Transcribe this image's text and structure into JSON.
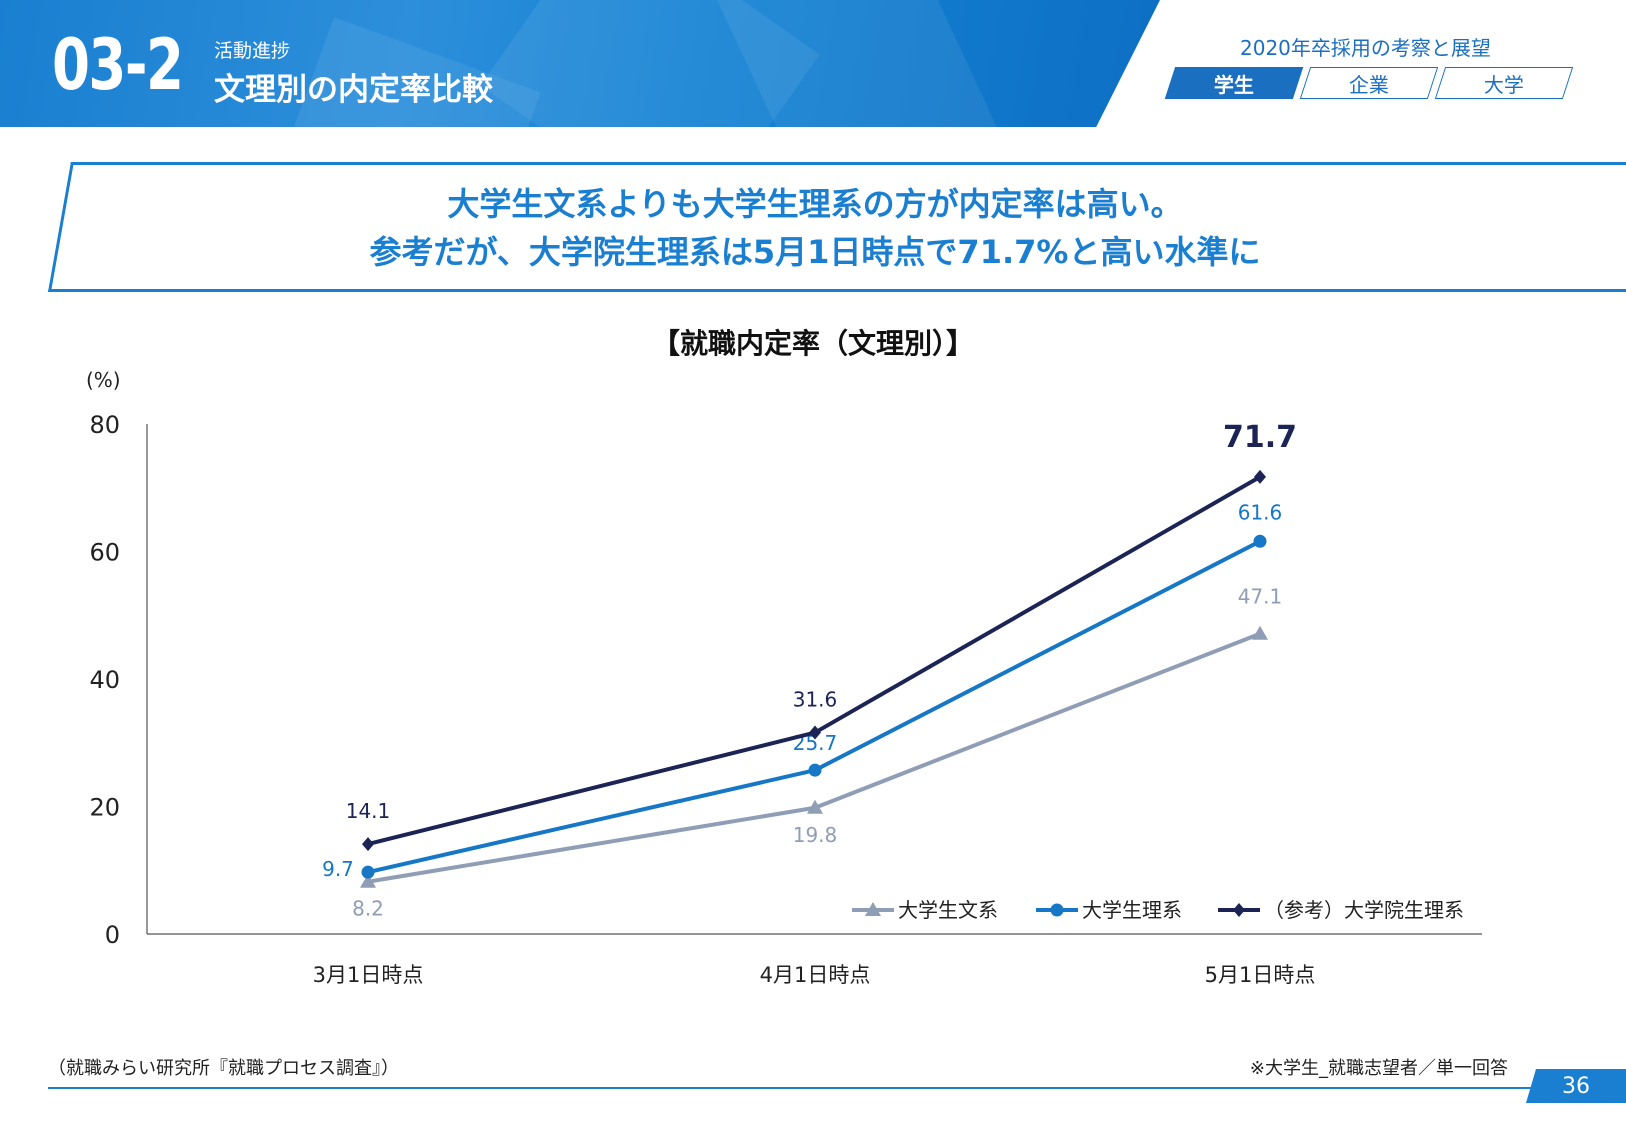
{
  "header": {
    "section_number": "03-2",
    "section_sub": "活動進捗",
    "section_title": "文理別の内定率比較"
  },
  "nav": {
    "report_title": "2020年卒採用の考察と展望",
    "tabs": [
      {
        "label": "学生",
        "active": true
      },
      {
        "label": "企業",
        "active": false
      },
      {
        "label": "大学",
        "active": false
      }
    ]
  },
  "headline": {
    "line1": "大学生文系よりも大学生理系の方が内定率は高い。",
    "line2": "参考だが、大学院生理系は5月1日時点で71.7%と高い水準に"
  },
  "chart_data": {
    "type": "line",
    "title": "【就職内定率（文理別）】",
    "ylabel": "(%)",
    "categories": [
      "3月1日時点",
      "4月1日時点",
      "5月1日時点"
    ],
    "ylim": [
      0,
      80
    ],
    "yticks": [
      0,
      20,
      40,
      60,
      80
    ],
    "grid": false,
    "legend_position": "bottom-right",
    "series": [
      {
        "name": "大学生文系",
        "values": [
          8.2,
          19.8,
          47.1
        ],
        "labels": [
          "8.2",
          "19.8",
          "47.1"
        ],
        "color": "#8f9db5",
        "marker": "triangle"
      },
      {
        "name": "大学生理系",
        "values": [
          9.7,
          25.7,
          61.6
        ],
        "labels": [
          "9.7",
          "25.7",
          "61.6"
        ],
        "color": "#1577c6",
        "marker": "circle"
      },
      {
        "name": "（参考）大学院生理系",
        "values": [
          14.1,
          31.6,
          71.7
        ],
        "labels": [
          "14.1",
          "31.6",
          "71.7"
        ],
        "color": "#1c2456",
        "marker": "diamond"
      }
    ]
  },
  "footer": {
    "source": "（就職みらい研究所『就職プロセス調査』）",
    "scope": "※大学生_就職志望者／単一回答",
    "page": "36"
  },
  "colors": {
    "accent": "#1a7fd0",
    "navy": "#1c2456"
  }
}
